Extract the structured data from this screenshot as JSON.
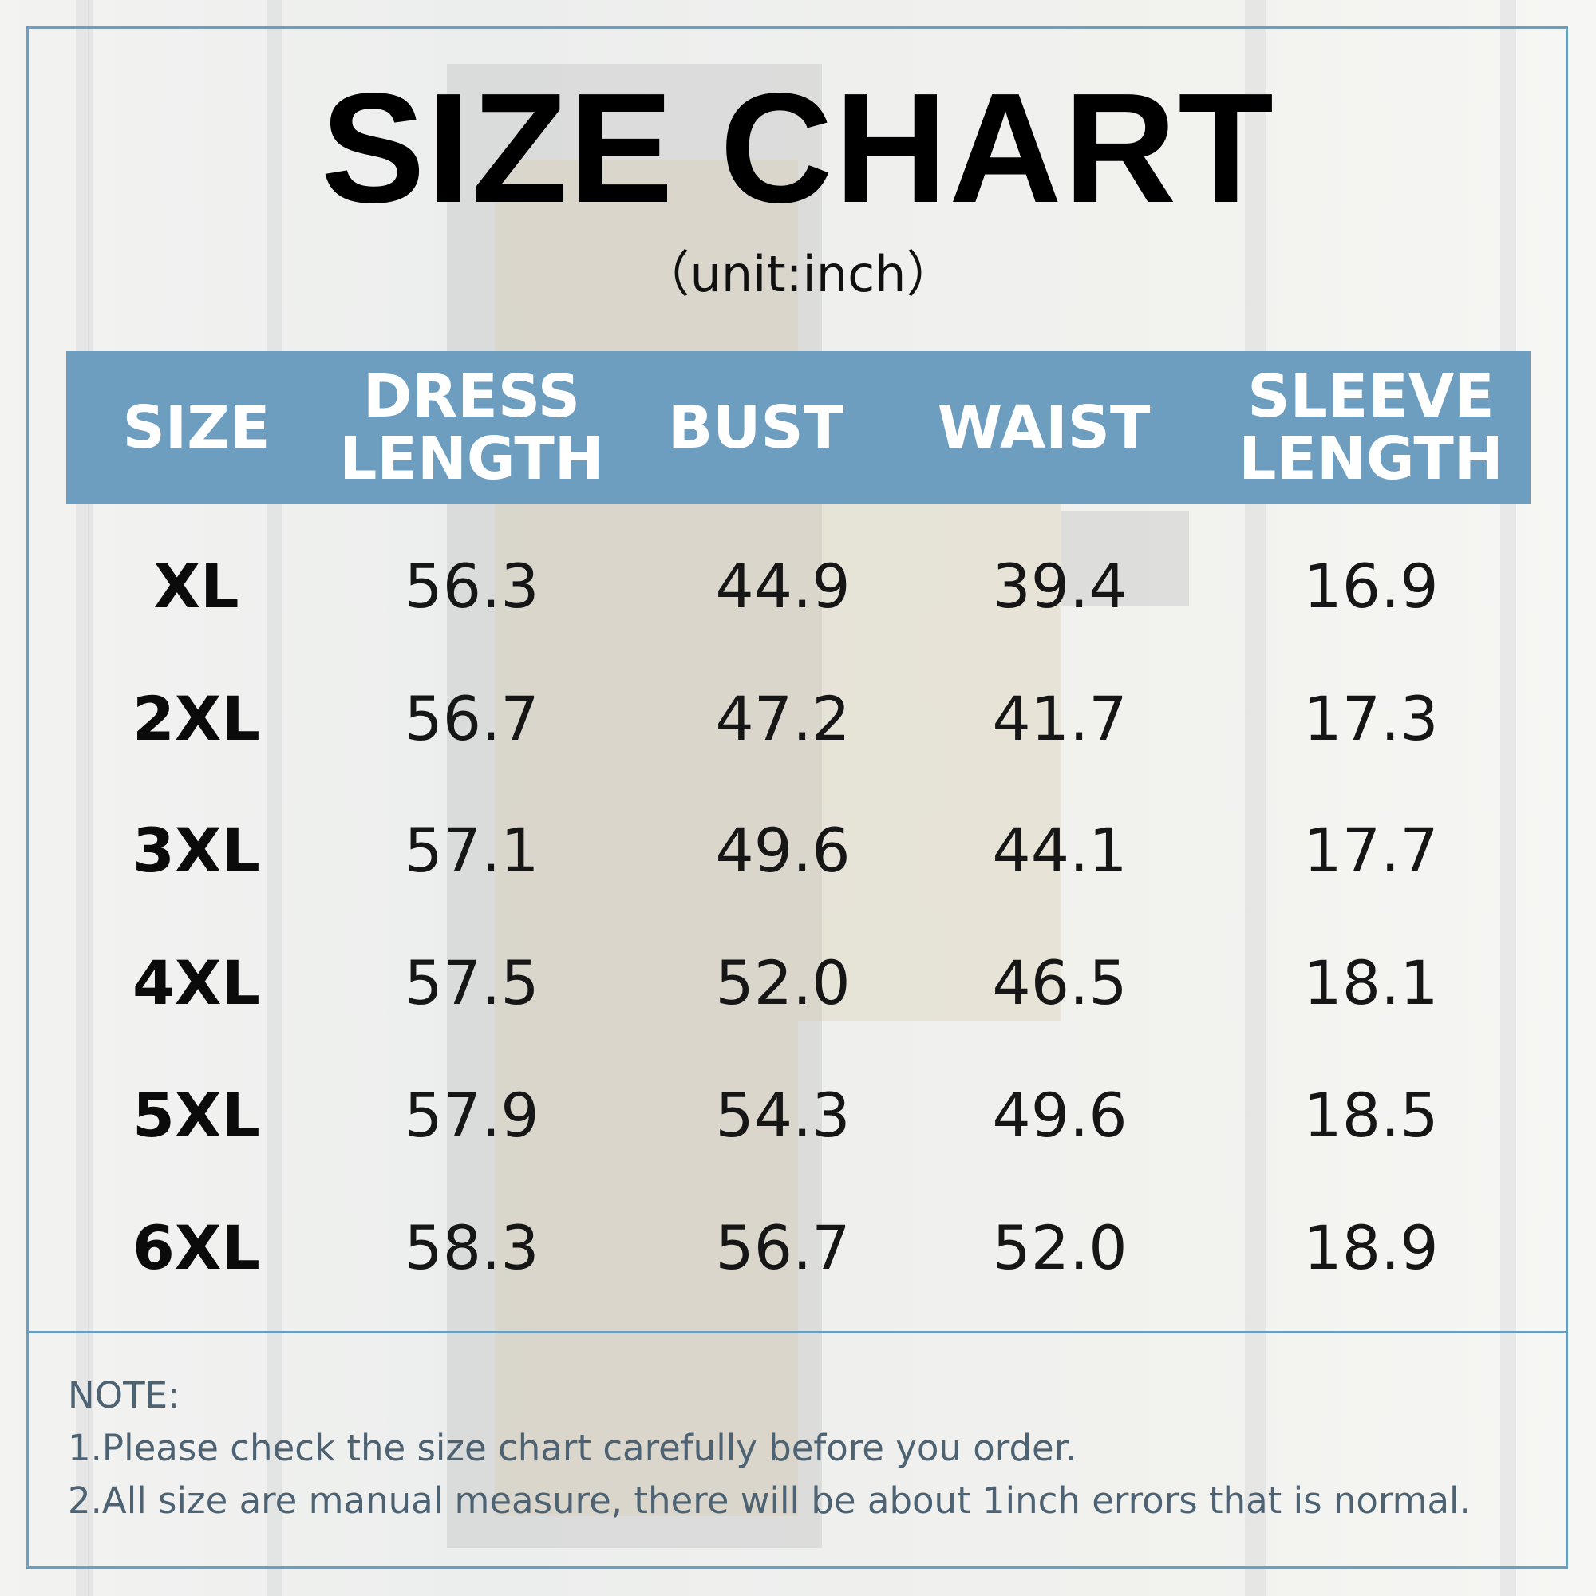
{
  "title": "SIZE CHART",
  "unit": "（unit:inch）",
  "accent_color": "#6d9ec0",
  "table": {
    "headers": [
      {
        "line1": "SIZE",
        "line2": ""
      },
      {
        "line1": "DRESS",
        "line2": "LENGTH"
      },
      {
        "line1": "BUST",
        "line2": ""
      },
      {
        "line1": "WAIST",
        "line2": ""
      },
      {
        "line1": "SLEEVE",
        "line2": "LENGTH"
      }
    ],
    "rows": [
      [
        "XL",
        "56.3",
        "44.9",
        "39.4",
        "16.9"
      ],
      [
        "2XL",
        "56.7",
        "47.2",
        "41.7",
        "17.3"
      ],
      [
        "3XL",
        "57.1",
        "49.6",
        "44.1",
        "17.7"
      ],
      [
        "4XL",
        "57.5",
        "52.0",
        "46.5",
        "18.1"
      ],
      [
        "5XL",
        "57.9",
        "54.3",
        "49.6",
        "18.5"
      ],
      [
        "6XL",
        "58.3",
        "56.7",
        "52.0",
        "18.9"
      ]
    ]
  },
  "notes": {
    "heading": "NOTE:",
    "line1": "1.Please check the size chart carefully before you order.",
    "line2": "2.All size are manual measure, there will be about 1inch errors that is normal."
  }
}
